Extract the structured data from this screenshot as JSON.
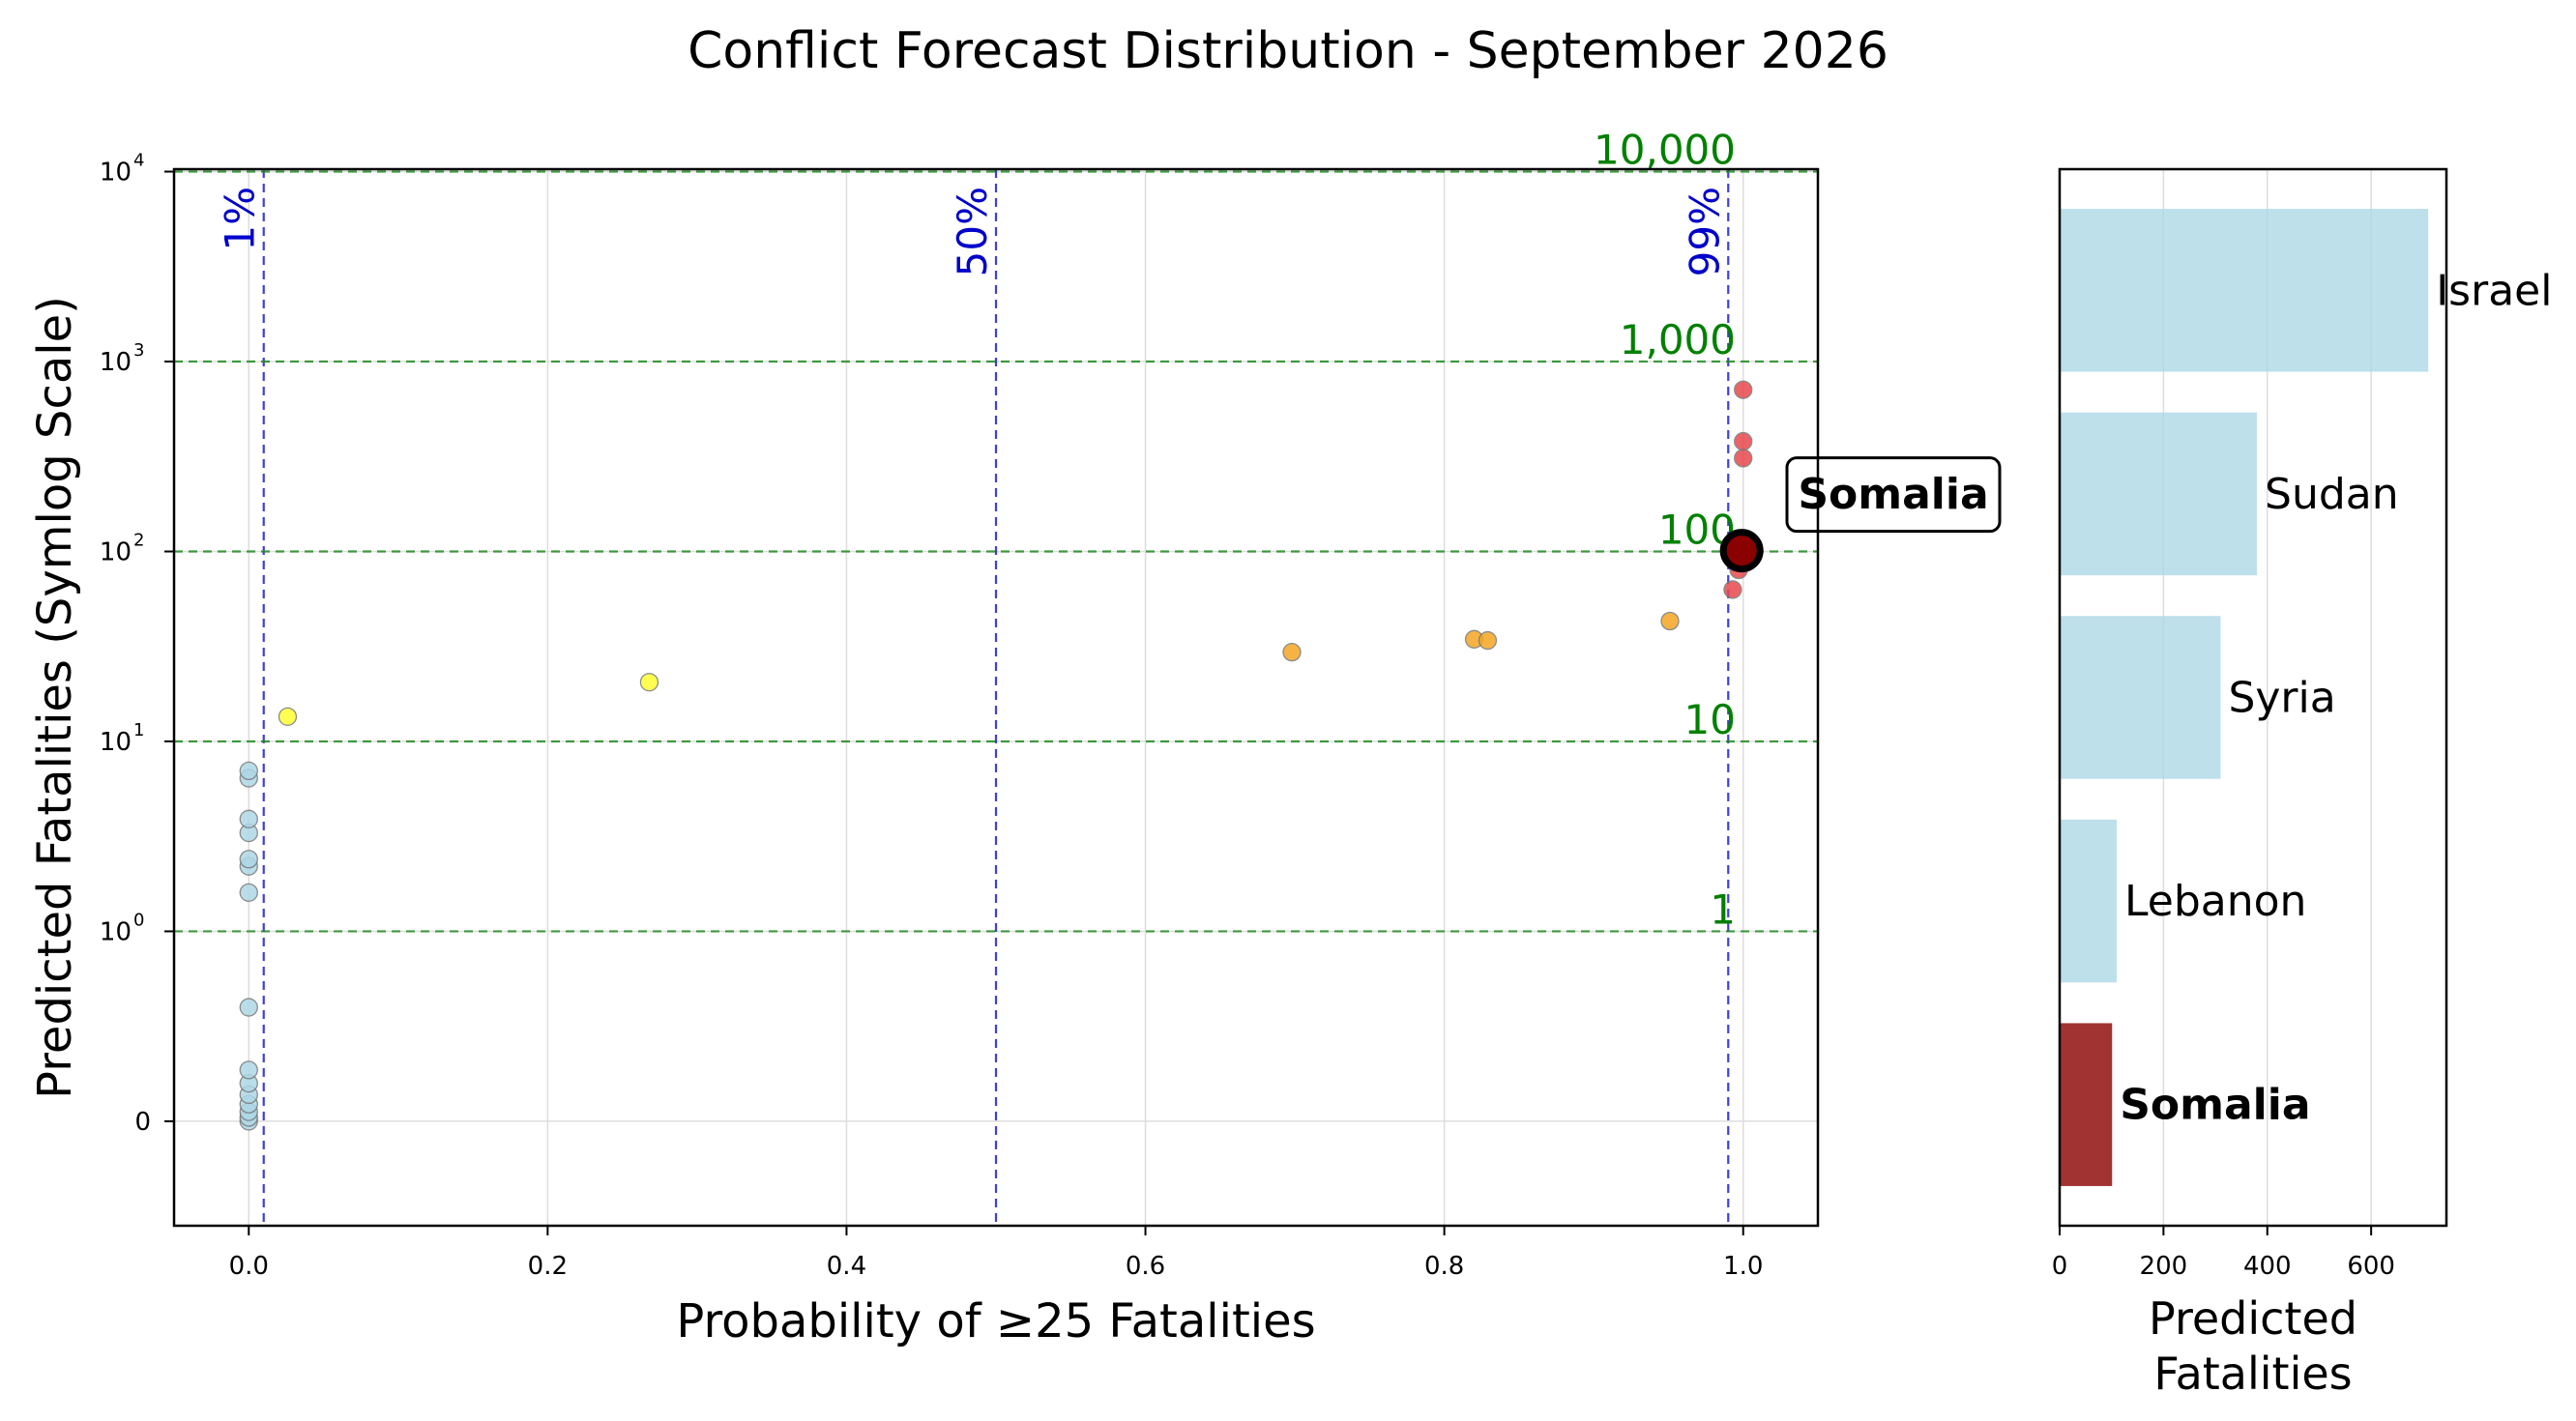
{
  "figure_title": "Conflict Forecast Distribution - September 2026",
  "colors": {
    "prob_line": "#0000cc",
    "fatality_line": "#228b22",
    "fatality_label": "#008000",
    "no_risk": "#add8e6",
    "low_risk": "#ffff33",
    "medium_risk": "#f5a623",
    "high_risk": "#e8484c",
    "highlight": "#8b0000",
    "bar_default": "#add8e6",
    "bar_highlight": "#8b0000"
  },
  "chart_data": [
    {
      "type": "scatter",
      "xlabel": "Probability of ≥25 Fatalities",
      "ylabel": "Predicted Fatalities (Symlog Scale)",
      "xlim": [
        -0.05,
        1.05
      ],
      "ylim_symlog": [
        -0.55,
        10300
      ],
      "yscale": "symlog",
      "grid": true,
      "x_ticks": [
        0.0,
        0.2,
        0.4,
        0.6,
        0.8,
        1.0
      ],
      "x_tick_labels": [
        "0.0",
        "0.2",
        "0.4",
        "0.6",
        "0.8",
        "1.0"
      ],
      "y_ticks": [
        {
          "value": 0,
          "base": "0",
          "exp": ""
        },
        {
          "value": 1,
          "base": "10",
          "exp": "0"
        },
        {
          "value": 10,
          "base": "10",
          "exp": "1"
        },
        {
          "value": 100,
          "base": "10",
          "exp": "2"
        },
        {
          "value": 1000,
          "base": "10",
          "exp": "3"
        },
        {
          "value": 10000,
          "base": "10",
          "exp": "4"
        }
      ],
      "probability_lines": [
        {
          "x": 0.01,
          "label": "1%"
        },
        {
          "x": 0.5,
          "label": "50%"
        },
        {
          "x": 0.99,
          "label": "99%"
        }
      ],
      "fatality_lines": [
        {
          "y": 1,
          "label": "1"
        },
        {
          "y": 10,
          "label": "10"
        },
        {
          "y": 100,
          "label": "100"
        },
        {
          "y": 1000,
          "label": "1,000"
        },
        {
          "y": 10000,
          "label": "10,000"
        }
      ],
      "points": [
        {
          "x": 0.0,
          "y": 0.0,
          "group": "no_risk"
        },
        {
          "x": 0.0,
          "y": 0.02,
          "group": "no_risk"
        },
        {
          "x": 0.0,
          "y": 0.05,
          "group": "no_risk"
        },
        {
          "x": 0.0,
          "y": 0.09,
          "group": "no_risk"
        },
        {
          "x": 0.0,
          "y": 0.14,
          "group": "no_risk"
        },
        {
          "x": 0.0,
          "y": 0.2,
          "group": "no_risk"
        },
        {
          "x": 0.0,
          "y": 0.27,
          "group": "no_risk"
        },
        {
          "x": 0.0,
          "y": 0.6,
          "group": "no_risk"
        },
        {
          "x": 0.0,
          "y": 1.6,
          "group": "no_risk"
        },
        {
          "x": 0.0,
          "y": 2.2,
          "group": "no_risk"
        },
        {
          "x": 0.0,
          "y": 2.4,
          "group": "no_risk"
        },
        {
          "x": 0.0,
          "y": 3.3,
          "group": "no_risk"
        },
        {
          "x": 0.0,
          "y": 3.9,
          "group": "no_risk"
        },
        {
          "x": 0.0,
          "y": 6.4,
          "group": "no_risk"
        },
        {
          "x": 0.0,
          "y": 7.0,
          "group": "no_risk"
        },
        {
          "x": 0.026,
          "y": 13.5,
          "group": "low_risk"
        },
        {
          "x": 0.268,
          "y": 20.5,
          "group": "low_risk"
        },
        {
          "x": 0.698,
          "y": 29.5,
          "group": "medium_risk"
        },
        {
          "x": 0.82,
          "y": 34.5,
          "group": "medium_risk"
        },
        {
          "x": 0.829,
          "y": 34.0,
          "group": "medium_risk"
        },
        {
          "x": 0.951,
          "y": 43.0,
          "group": "medium_risk"
        },
        {
          "x": 0.993,
          "y": 63,
          "group": "high_risk"
        },
        {
          "x": 0.997,
          "y": 80,
          "group": "high_risk"
        },
        {
          "x": 0.999,
          "y": 88,
          "group": "high_risk"
        },
        {
          "x": 1.0,
          "y": 310,
          "group": "high_risk"
        },
        {
          "x": 1.0,
          "y": 380,
          "group": "high_risk"
        },
        {
          "x": 1.0,
          "y": 710,
          "group": "high_risk"
        }
      ],
      "highlight": {
        "x": 0.999,
        "y": 101,
        "label": "Somalia"
      }
    },
    {
      "type": "bar",
      "orientation": "horizontal",
      "xlabel": "Predicted Fatalities",
      "xlim": [
        0,
        745
      ],
      "x_ticks": [
        0,
        200,
        400,
        600
      ],
      "x_tick_labels": [
        "0",
        "200",
        "400",
        "600"
      ],
      "grid": true,
      "categories": [
        "Israel",
        "Sudan",
        "Syria",
        "Lebanon",
        "Somalia"
      ],
      "values": [
        710,
        380,
        310,
        110,
        101
      ],
      "highlight": "Somalia"
    }
  ]
}
